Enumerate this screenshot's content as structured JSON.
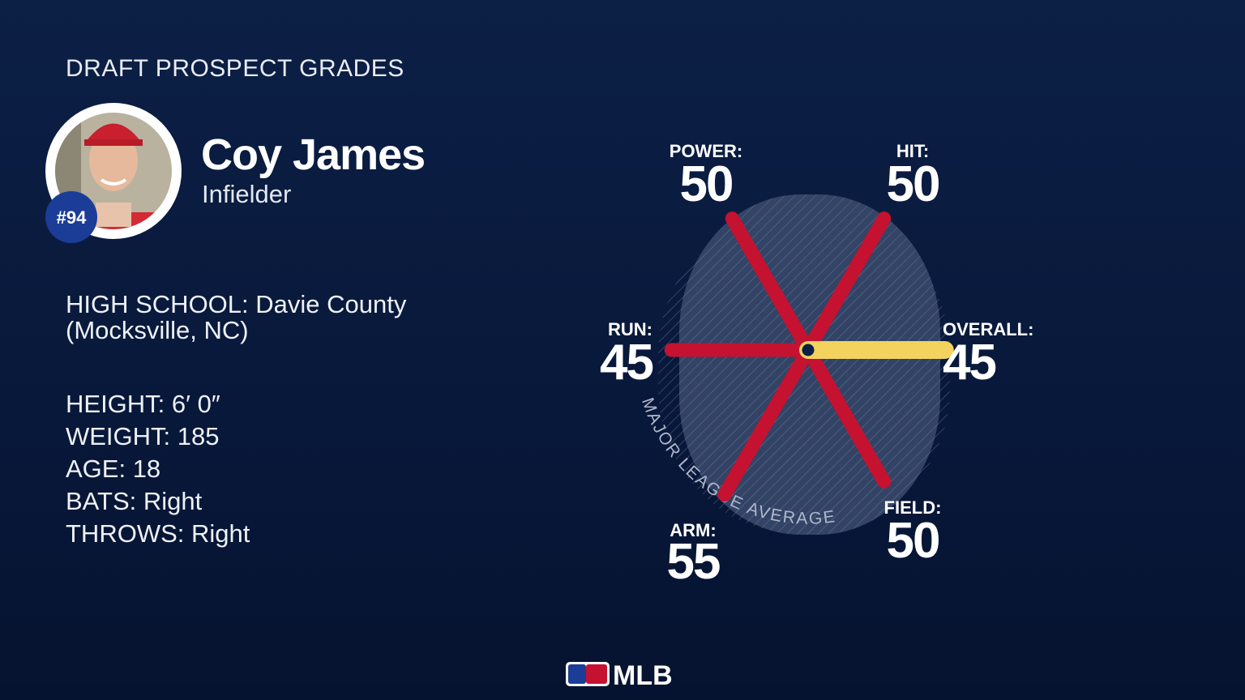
{
  "header": {
    "title": "DRAFT PROSPECT GRADES"
  },
  "player": {
    "name": "Coy James",
    "position": "Infielder",
    "number": "#94",
    "school": [
      "HIGH SCHOOL: Davie County",
      "(Mocksville, NC)"
    ],
    "details": [
      "HEIGHT: 6′ 0″",
      "WEIGHT: 185",
      "AGE: 18",
      "BATS: Right",
      "THROWS: Right"
    ]
  },
  "chart_data": {
    "type": "radial-spokes",
    "categories": [
      "POWER:",
      "HIT:",
      "OVERALL:",
      "FIELD:",
      "ARM:",
      "RUN:"
    ],
    "values": [
      50,
      50,
      45,
      50,
      55,
      45
    ],
    "colors": [
      "#c41230",
      "#c41230",
      "#f3d25e",
      "#c41230",
      "#c41230",
      "#c41230"
    ],
    "rlim": [
      0,
      80
    ],
    "annotation": "MAJOR LEAGUE AVERAGE"
  },
  "footer": {
    "logo_text": "MLB"
  }
}
